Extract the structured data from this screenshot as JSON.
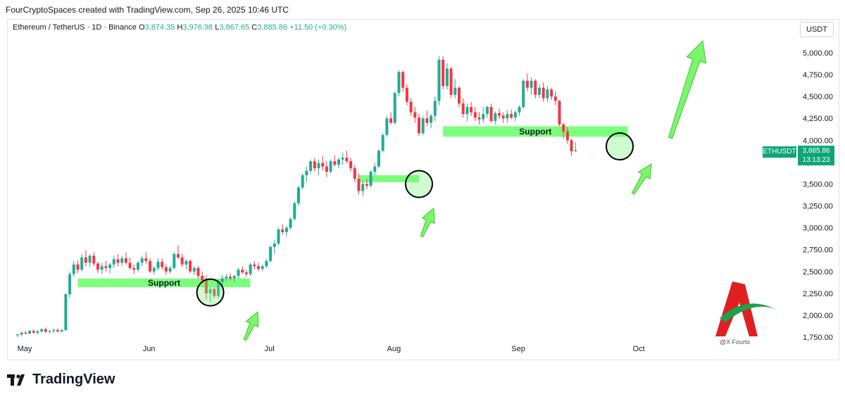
{
  "header": {
    "attribution": "FourCryptoSpaces created with TradingView.com, Sep 26, 2025 10:46 UTC"
  },
  "legend": {
    "symbol_line": "Ethereum / TetherUS · 1D · Binance",
    "open_label": "O",
    "open": "3,874.35",
    "high_label": "H",
    "high": "3,976.98",
    "low_label": "L",
    "low": "3,867.65",
    "close_label": "C",
    "close": "3,885.86",
    "change": "+11.50 (+0.30%)"
  },
  "currency_button": "USDT",
  "price_tag": {
    "symbol": "ETHUSDT",
    "price": "3,885.86",
    "countdown": "13:13:23"
  },
  "brand": {
    "name": "TradingView"
  },
  "watermark": {
    "text": "@X Fourtx"
  },
  "colors": {
    "up": "#22ab94",
    "down": "#f23645",
    "support": "#66ff66",
    "arrow": "#7cf56a",
    "tag": "#0ca678"
  },
  "chart_data": {
    "type": "candlestick",
    "symbol": "ETHUSDT",
    "interval": "1D",
    "ylim": [
      1700,
      5100
    ],
    "yticks": [
      1750,
      2000,
      2250,
      2500,
      2750,
      3000,
      3250,
      3500,
      3750,
      4000,
      4250,
      4500,
      4750,
      5000
    ],
    "ytick_labels": [
      "1,750.00",
      "2,000.00",
      "2,250.00",
      "2,500.00",
      "2,750.00",
      "3,000.00",
      "3,250.00",
      "3,500.00",
      "3,750.00",
      "4,000.00",
      "4,250.00",
      "4,500.00",
      "4,750.00",
      "5,000.00"
    ],
    "x_months": [
      {
        "label": "May",
        "day": 0
      },
      {
        "label": "Jun",
        "day": 31
      },
      {
        "label": "Jul",
        "day": 61
      },
      {
        "label": "Aug",
        "day": 92
      },
      {
        "label": "Sep",
        "day": 123
      },
      {
        "label": "Oct",
        "day": 153
      }
    ],
    "first_date": "2025-04-25",
    "candles": [
      [
        1770,
        1790,
        1750,
        1780
      ],
      [
        1780,
        1810,
        1760,
        1800
      ],
      [
        1800,
        1820,
        1780,
        1790
      ],
      [
        1790,
        1830,
        1780,
        1820
      ],
      [
        1820,
        1840,
        1790,
        1800
      ],
      [
        1800,
        1830,
        1780,
        1815
      ],
      [
        1815,
        1850,
        1800,
        1840
      ],
      [
        1840,
        1860,
        1800,
        1810
      ],
      [
        1810,
        1830,
        1790,
        1820
      ],
      [
        1820,
        1850,
        1800,
        1830
      ],
      [
        1830,
        1850,
        1805,
        1815
      ],
      [
        1815,
        1840,
        1800,
        1830
      ],
      [
        1830,
        2250,
        1820,
        2240
      ],
      [
        2240,
        2500,
        2200,
        2470
      ],
      [
        2470,
        2620,
        2440,
        2580
      ],
      [
        2580,
        2630,
        2480,
        2520
      ],
      [
        2520,
        2700,
        2500,
        2660
      ],
      [
        2660,
        2740,
        2560,
        2600
      ],
      [
        2600,
        2700,
        2550,
        2680
      ],
      [
        2680,
        2720,
        2560,
        2590
      ],
      [
        2590,
        2610,
        2480,
        2520
      ],
      [
        2520,
        2600,
        2470,
        2560
      ],
      [
        2560,
        2620,
        2500,
        2540
      ],
      [
        2540,
        2600,
        2480,
        2580
      ],
      [
        2580,
        2680,
        2540,
        2640
      ],
      [
        2640,
        2700,
        2560,
        2600
      ],
      [
        2600,
        2680,
        2560,
        2650
      ],
      [
        2650,
        2720,
        2580,
        2600
      ],
      [
        2600,
        2660,
        2520,
        2540
      ],
      [
        2540,
        2580,
        2470,
        2520
      ],
      [
        2520,
        2620,
        2500,
        2600
      ],
      [
        2600,
        2680,
        2560,
        2650
      ],
      [
        2650,
        2720,
        2590,
        2620
      ],
      [
        2620,
        2650,
        2480,
        2500
      ],
      [
        2500,
        2560,
        2460,
        2540
      ],
      [
        2540,
        2650,
        2510,
        2610
      ],
      [
        2610,
        2650,
        2520,
        2550
      ],
      [
        2550,
        2580,
        2460,
        2500
      ],
      [
        2500,
        2560,
        2470,
        2540
      ],
      [
        2540,
        2720,
        2520,
        2700
      ],
      [
        2700,
        2800,
        2640,
        2660
      ],
      [
        2660,
        2700,
        2550,
        2580
      ],
      [
        2580,
        2640,
        2520,
        2620
      ],
      [
        2620,
        2640,
        2480,
        2500
      ],
      [
        2500,
        2560,
        2460,
        2540
      ],
      [
        2540,
        2560,
        2420,
        2450
      ],
      [
        2450,
        2500,
        2360,
        2400
      ],
      [
        2400,
        2460,
        2180,
        2250
      ],
      [
        2250,
        2330,
        2150,
        2300
      ],
      [
        2300,
        2320,
        2200,
        2220
      ],
      [
        2220,
        2400,
        2200,
        2380
      ],
      [
        2380,
        2460,
        2340,
        2420
      ],
      [
        2420,
        2470,
        2390,
        2440
      ],
      [
        2440,
        2480,
        2400,
        2420
      ],
      [
        2420,
        2460,
        2380,
        2450
      ],
      [
        2450,
        2540,
        2420,
        2520
      ],
      [
        2520,
        2560,
        2470,
        2490
      ],
      [
        2490,
        2520,
        2440,
        2470
      ],
      [
        2470,
        2600,
        2450,
        2580
      ],
      [
        2580,
        2620,
        2520,
        2560
      ],
      [
        2560,
        2600,
        2500,
        2530
      ],
      [
        2530,
        2580,
        2500,
        2560
      ],
      [
        2560,
        2640,
        2540,
        2620
      ],
      [
        2620,
        2800,
        2600,
        2780
      ],
      [
        2780,
        2860,
        2700,
        2820
      ],
      [
        2820,
        3000,
        2800,
        2980
      ],
      [
        2980,
        3040,
        2920,
        2950
      ],
      [
        2950,
        3020,
        2900,
        3000
      ],
      [
        3000,
        3120,
        2980,
        3100
      ],
      [
        3100,
        3300,
        3080,
        3280
      ],
      [
        3280,
        3480,
        3250,
        3460
      ],
      [
        3460,
        3620,
        3440,
        3600
      ],
      [
        3600,
        3700,
        3520,
        3650
      ],
      [
        3650,
        3780,
        3620,
        3760
      ],
      [
        3760,
        3800,
        3640,
        3680
      ],
      [
        3680,
        3780,
        3600,
        3740
      ],
      [
        3740,
        3820,
        3650,
        3700
      ],
      [
        3700,
        3760,
        3580,
        3640
      ],
      [
        3640,
        3780,
        3620,
        3760
      ],
      [
        3760,
        3830,
        3700,
        3720
      ],
      [
        3720,
        3800,
        3680,
        3780
      ],
      [
        3780,
        3860,
        3720,
        3800
      ],
      [
        3800,
        3880,
        3740,
        3760
      ],
      [
        3760,
        3800,
        3640,
        3680
      ],
      [
        3680,
        3720,
        3520,
        3560
      ],
      [
        3560,
        3620,
        3380,
        3420
      ],
      [
        3420,
        3540,
        3360,
        3500
      ],
      [
        3500,
        3560,
        3440,
        3480
      ],
      [
        3480,
        3660,
        3460,
        3640
      ],
      [
        3640,
        3740,
        3600,
        3700
      ],
      [
        3700,
        3900,
        3680,
        3880
      ],
      [
        3880,
        4080,
        3860,
        4060
      ],
      [
        4060,
        4280,
        4040,
        4250
      ],
      [
        4250,
        4320,
        4180,
        4200
      ],
      [
        4200,
        4560,
        4180,
        4540
      ],
      [
        4540,
        4800,
        4500,
        4780
      ],
      [
        4780,
        4800,
        4550,
        4600
      ],
      [
        4600,
        4640,
        4400,
        4440
      ],
      [
        4440,
        4480,
        4280,
        4320
      ],
      [
        4320,
        4380,
        4200,
        4260
      ],
      [
        4260,
        4300,
        4050,
        4080
      ],
      [
        4080,
        4280,
        4060,
        4250
      ],
      [
        4250,
        4340,
        4160,
        4200
      ],
      [
        4200,
        4300,
        4140,
        4280
      ],
      [
        4280,
        4500,
        4220,
        4450
      ],
      [
        4450,
        4960,
        4400,
        4920
      ],
      [
        4920,
        4960,
        4580,
        4620
      ],
      [
        4620,
        4880,
        4580,
        4820
      ],
      [
        4820,
        4840,
        4480,
        4520
      ],
      [
        4520,
        4700,
        4480,
        4600
      ],
      [
        4600,
        4620,
        4380,
        4420
      ],
      [
        4420,
        4480,
        4260,
        4300
      ],
      [
        4300,
        4420,
        4220,
        4380
      ],
      [
        4380,
        4440,
        4280,
        4320
      ],
      [
        4320,
        4380,
        4220,
        4260
      ],
      [
        4260,
        4320,
        4180,
        4240
      ],
      [
        4240,
        4380,
        4200,
        4300
      ],
      [
        4300,
        4400,
        4260,
        4380
      ],
      [
        4380,
        4420,
        4200,
        4220
      ],
      [
        4220,
        4330,
        4180,
        4310
      ],
      [
        4310,
        4360,
        4240,
        4280
      ],
      [
        4280,
        4320,
        4200,
        4250
      ],
      [
        4250,
        4340,
        4200,
        4300
      ],
      [
        4300,
        4350,
        4240,
        4260
      ],
      [
        4260,
        4340,
        4220,
        4320
      ],
      [
        4320,
        4400,
        4280,
        4380
      ],
      [
        4380,
        4700,
        4360,
        4680
      ],
      [
        4680,
        4760,
        4560,
        4600
      ],
      [
        4600,
        4720,
        4520,
        4680
      ],
      [
        4680,
        4700,
        4480,
        4520
      ],
      [
        4520,
        4640,
        4480,
        4600
      ],
      [
        4600,
        4660,
        4440,
        4480
      ],
      [
        4480,
        4620,
        4440,
        4580
      ],
      [
        4580,
        4600,
        4460,
        4500
      ],
      [
        4500,
        4560,
        4400,
        4450
      ],
      [
        4450,
        4460,
        4160,
        4180
      ],
      [
        4180,
        4200,
        4020,
        4100
      ],
      [
        4100,
        4150,
        3960,
        4000
      ],
      [
        4000,
        4020,
        3820,
        3874
      ],
      [
        3874,
        3977,
        3868,
        3886
      ]
    ]
  },
  "annotations": {
    "support_1": "Support",
    "support_2": "Support"
  }
}
